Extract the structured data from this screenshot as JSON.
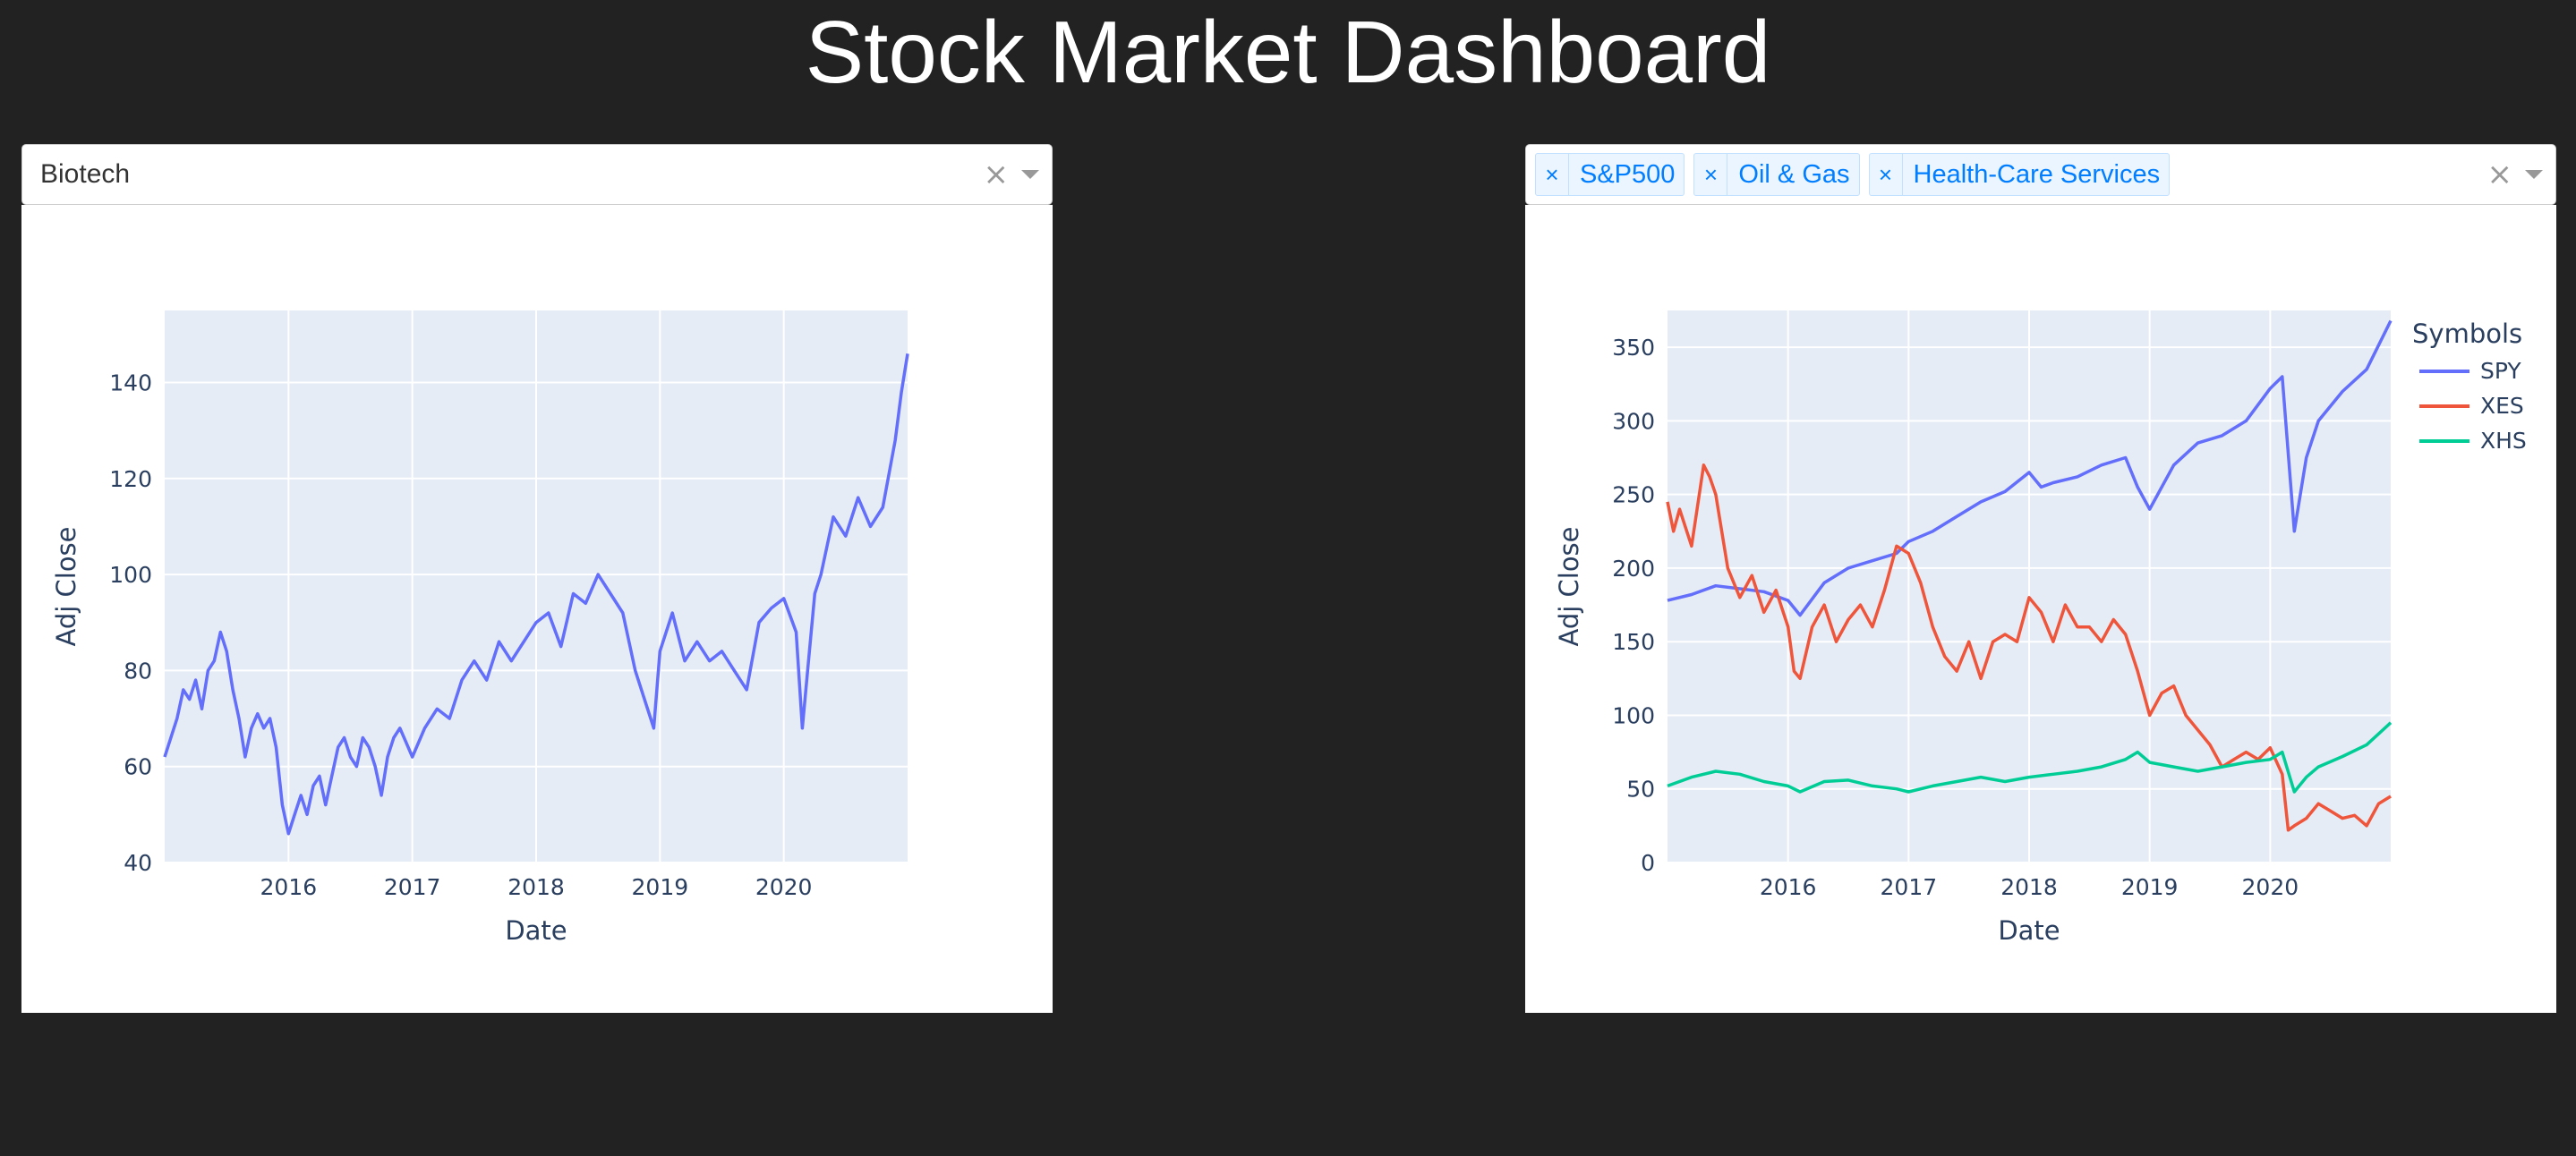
{
  "page": {
    "title": "Stock Market Dashboard"
  },
  "left_panel": {
    "dropdown": {
      "selected": "Biotech"
    }
  },
  "right_panel": {
    "dropdown": {
      "tags": [
        "S&P500",
        "Oil & Gas",
        "Health-Care Services"
      ]
    }
  },
  "icons": {
    "clear": "close-icon",
    "remove_tag": "close-icon",
    "expand": "chevron-down-icon"
  },
  "colors": {
    "background": "#222222",
    "plot_bg": "#e5ecf6",
    "spy": "#636efa",
    "xes": "#ef553b",
    "xhs": "#00cc96",
    "tag_text": "#007eff"
  },
  "chart_data": [
    {
      "type": "line",
      "title": "",
      "xlabel": "Date",
      "ylabel": "Adj Close",
      "xlim": [
        2015.0,
        2021.0
      ],
      "ylim": [
        40,
        155
      ],
      "xticks": [
        2016,
        2017,
        2018,
        2019,
        2020
      ],
      "yticks": [
        40,
        60,
        80,
        100,
        120,
        140
      ],
      "legend": false,
      "grid": true,
      "series": [
        {
          "color": "#636efa",
          "x": [
            2015.0,
            2015.05,
            2015.1,
            2015.15,
            2015.2,
            2015.25,
            2015.3,
            2015.35,
            2015.4,
            2015.45,
            2015.5,
            2015.55,
            2015.6,
            2015.65,
            2015.7,
            2015.75,
            2015.8,
            2015.85,
            2015.9,
            2015.95,
            2016.0,
            2016.05,
            2016.1,
            2016.15,
            2016.2,
            2016.25,
            2016.3,
            2016.35,
            2016.4,
            2016.45,
            2016.5,
            2016.55,
            2016.6,
            2016.65,
            2016.7,
            2016.75,
            2016.8,
            2016.85,
            2016.9,
            2016.95,
            2017.0,
            2017.1,
            2017.2,
            2017.3,
            2017.4,
            2017.5,
            2017.6,
            2017.7,
            2017.8,
            2017.9,
            2018.0,
            2018.1,
            2018.2,
            2018.3,
            2018.4,
            2018.5,
            2018.6,
            2018.7,
            2018.8,
            2018.9,
            2018.95,
            2019.0,
            2019.1,
            2019.2,
            2019.3,
            2019.4,
            2019.5,
            2019.6,
            2019.7,
            2019.8,
            2019.9,
            2020.0,
            2020.1,
            2020.15,
            2020.2,
            2020.25,
            2020.3,
            2020.4,
            2020.5,
            2020.6,
            2020.7,
            2020.8,
            2020.9,
            2020.95,
            2021.0
          ],
          "y": [
            62,
            66,
            70,
            76,
            74,
            78,
            72,
            80,
            82,
            88,
            84,
            76,
            70,
            62,
            68,
            71,
            68,
            70,
            64,
            52,
            46,
            50,
            54,
            50,
            56,
            58,
            52,
            58,
            64,
            66,
            62,
            60,
            66,
            64,
            60,
            54,
            62,
            66,
            68,
            65,
            62,
            68,
            72,
            70,
            78,
            82,
            78,
            86,
            82,
            86,
            90,
            92,
            85,
            96,
            94,
            100,
            96,
            92,
            80,
            72,
            68,
            84,
            92,
            82,
            86,
            82,
            84,
            80,
            76,
            90,
            93,
            95,
            88,
            68,
            82,
            96,
            100,
            112,
            108,
            116,
            110,
            114,
            128,
            138,
            146
          ]
        }
      ]
    },
    {
      "type": "line",
      "title": "",
      "xlabel": "Date",
      "ylabel": "Adj Close",
      "xlim": [
        2015.0,
        2021.0
      ],
      "ylim": [
        0,
        375
      ],
      "xticks": [
        2016,
        2017,
        2018,
        2019,
        2020
      ],
      "yticks": [
        0,
        50,
        100,
        150,
        200,
        250,
        300,
        350
      ],
      "legend": true,
      "legend_title": "Symbols",
      "legend_position": "top-right",
      "grid": true,
      "series": [
        {
          "name": "SPY",
          "color": "#636efa",
          "x": [
            2015.0,
            2015.2,
            2015.4,
            2015.6,
            2015.8,
            2016.0,
            2016.1,
            2016.3,
            2016.5,
            2016.7,
            2016.9,
            2017.0,
            2017.2,
            2017.4,
            2017.6,
            2017.8,
            2018.0,
            2018.1,
            2018.2,
            2018.4,
            2018.6,
            2018.8,
            2018.9,
            2019.0,
            2019.2,
            2019.4,
            2019.6,
            2019.8,
            2020.0,
            2020.1,
            2020.2,
            2020.3,
            2020.4,
            2020.6,
            2020.8,
            2021.0
          ],
          "y": [
            178,
            182,
            188,
            186,
            184,
            178,
            168,
            190,
            200,
            205,
            210,
            218,
            225,
            235,
            245,
            252,
            265,
            255,
            258,
            262,
            270,
            275,
            255,
            240,
            270,
            285,
            290,
            300,
            322,
            330,
            225,
            275,
            300,
            320,
            335,
            368
          ]
        },
        {
          "name": "XES",
          "color": "#ef553b",
          "x": [
            2015.0,
            2015.05,
            2015.1,
            2015.2,
            2015.3,
            2015.35,
            2015.4,
            2015.5,
            2015.6,
            2015.7,
            2015.8,
            2015.9,
            2016.0,
            2016.05,
            2016.1,
            2016.2,
            2016.3,
            2016.4,
            2016.5,
            2016.6,
            2016.7,
            2016.8,
            2016.9,
            2017.0,
            2017.1,
            2017.2,
            2017.3,
            2017.4,
            2017.5,
            2017.6,
            2017.7,
            2017.8,
            2017.9,
            2018.0,
            2018.1,
            2018.2,
            2018.3,
            2018.4,
            2018.5,
            2018.6,
            2018.7,
            2018.8,
            2018.9,
            2019.0,
            2019.1,
            2019.2,
            2019.3,
            2019.4,
            2019.5,
            2019.6,
            2019.7,
            2019.8,
            2019.9,
            2020.0,
            2020.1,
            2020.15,
            2020.2,
            2020.3,
            2020.4,
            2020.5,
            2020.6,
            2020.7,
            2020.8,
            2020.9,
            2021.0
          ],
          "y": [
            245,
            225,
            240,
            215,
            270,
            262,
            250,
            200,
            180,
            195,
            170,
            185,
            160,
            130,
            125,
            160,
            175,
            150,
            165,
            175,
            160,
            185,
            215,
            210,
            190,
            160,
            140,
            130,
            150,
            125,
            150,
            155,
            150,
            180,
            170,
            150,
            175,
            160,
            160,
            150,
            165,
            155,
            130,
            100,
            115,
            120,
            100,
            90,
            80,
            65,
            70,
            75,
            70,
            78,
            60,
            22,
            25,
            30,
            40,
            35,
            30,
            32,
            25,
            40,
            45
          ]
        },
        {
          "name": "XHS",
          "color": "#00cc96",
          "x": [
            2015.0,
            2015.2,
            2015.4,
            2015.6,
            2015.8,
            2016.0,
            2016.1,
            2016.3,
            2016.5,
            2016.7,
            2016.9,
            2017.0,
            2017.2,
            2017.4,
            2017.6,
            2017.8,
            2018.0,
            2018.2,
            2018.4,
            2018.6,
            2018.8,
            2018.9,
            2019.0,
            2019.2,
            2019.4,
            2019.6,
            2019.8,
            2020.0,
            2020.1,
            2020.2,
            2020.3,
            2020.4,
            2020.6,
            2020.8,
            2021.0
          ],
          "y": [
            52,
            58,
            62,
            60,
            55,
            52,
            48,
            55,
            56,
            52,
            50,
            48,
            52,
            55,
            58,
            55,
            58,
            60,
            62,
            65,
            70,
            75,
            68,
            65,
            62,
            65,
            68,
            70,
            75,
            48,
            58,
            65,
            72,
            80,
            95
          ]
        }
      ]
    }
  ]
}
